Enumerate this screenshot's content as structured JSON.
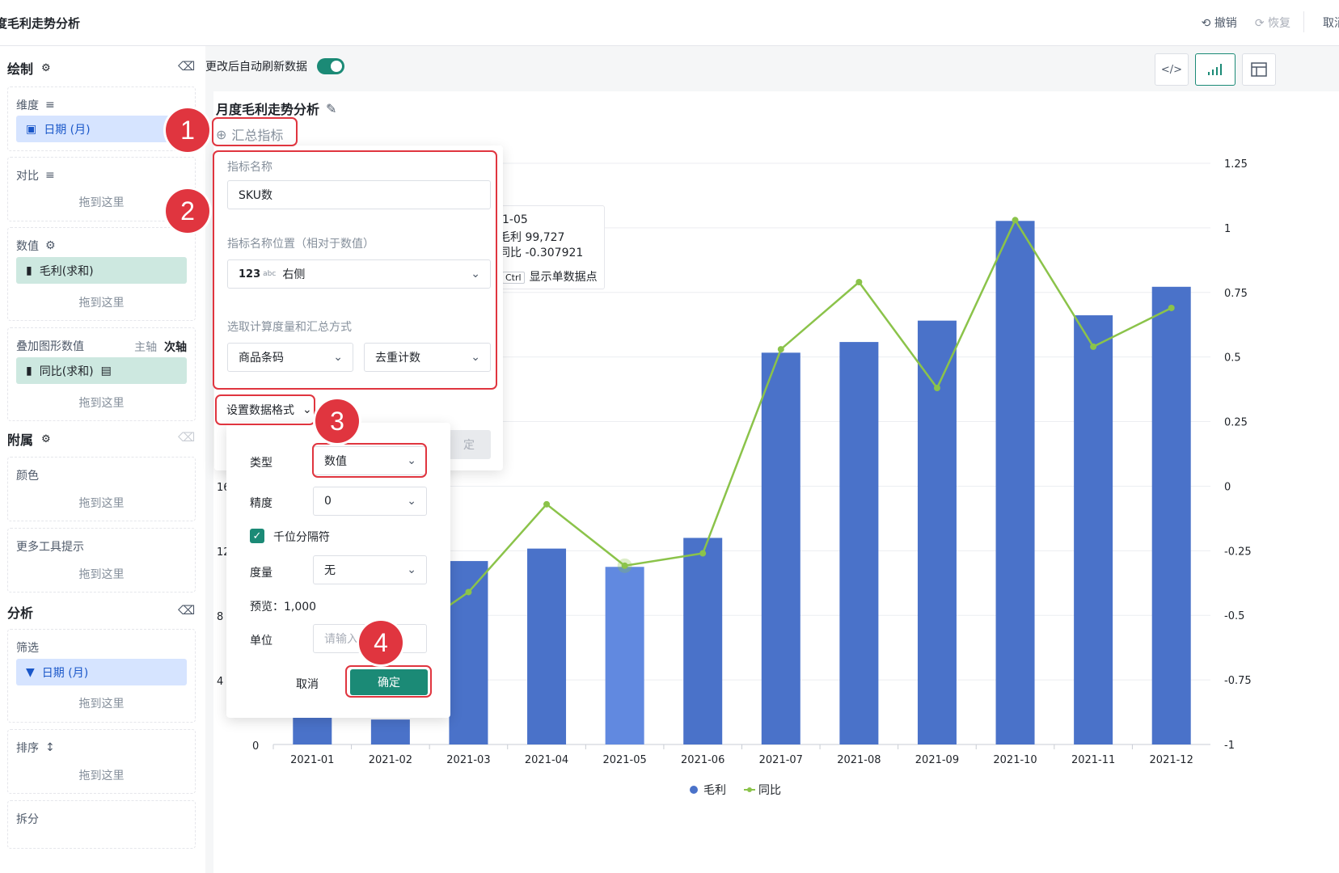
{
  "topbar": {
    "title": "度毛利走势分析",
    "undo": "撤销",
    "redo": "恢复",
    "cancel": "取消"
  },
  "left": {
    "draw": {
      "title": "绘制"
    },
    "dimension": {
      "label": "维度",
      "chip": "日期 (月)"
    },
    "compare": {
      "label": "对比",
      "drop": "拖到这里"
    },
    "value": {
      "label": "数值",
      "chip": "毛利(求和)",
      "drop": "拖到这里"
    },
    "overlay": {
      "label": "叠加图形数值",
      "main_axis": "主轴",
      "sub_axis": "次轴",
      "chip": "同比(求和)",
      "drop": "拖到这里"
    },
    "attach": {
      "title": "附属"
    },
    "color": {
      "label": "颜色",
      "drop": "拖到这里"
    },
    "tooltip_more": {
      "label": "更多工具提示",
      "drop": "拖到这里"
    },
    "analysis": {
      "title": "分析"
    },
    "filter": {
      "label": "筛选",
      "chip": "日期 (月)",
      "drop": "拖到这里"
    },
    "sort": {
      "label": "排序",
      "drop": "拖到这里"
    },
    "split": {
      "label": "拆分"
    }
  },
  "toolbar": {
    "auto_refresh": "更改后自动刷新数据",
    "code_icon": "</>"
  },
  "chart_header": {
    "title": "月度毛利走势分析",
    "agg_button": "汇总指标"
  },
  "popover": {
    "name_label": "指标名称",
    "name_value": "SKU数",
    "pos_label": "指标名称位置（相对于数值）",
    "pos_prefix": "123",
    "pos_prefix_small": "abc",
    "pos_value": "右侧",
    "calc_label": "选取计算度量和汇总方式",
    "measure": "商品条码",
    "agg": "去重计数",
    "hidden_btn": "定"
  },
  "format": {
    "button": "设置数据格式",
    "type_label": "类型",
    "type_value": "数值",
    "precision_label": "精度",
    "precision_value": "0",
    "thousands": "千位分隔符",
    "unit_scale_label": "度量",
    "unit_scale_value": "无",
    "preview": "预览：1,000",
    "unit_label": "单位",
    "unit_placeholder": "请输入",
    "cancel": "取消",
    "ok": "确定"
  },
  "tooltip": {
    "line1": "1-05",
    "line2": "毛利 99,727",
    "line3": "同比 -0.307921",
    "ctrl": "Ctrl",
    "hint": "显示单数据点"
  },
  "badges": [
    "1",
    "2",
    "3",
    "4"
  ],
  "colors": {
    "accent": "#1b8a76",
    "bar": "#4a72c9",
    "bar_hover": "#6189e0",
    "line": "#8bc34a",
    "annotation": "#e0353f"
  },
  "chart_data": {
    "type": "bar",
    "categories": [
      "2021-01",
      "2021-02",
      "2021-03",
      "2021-04",
      "2021-05",
      "2021-06",
      "2021-07",
      "2021-08",
      "2021-09",
      "2021-10",
      "2021-11",
      "2021-12"
    ],
    "series": [
      {
        "name": "毛利",
        "type": "bar",
        "axis": "left",
        "values": [
          26000,
          14000,
          103000,
          110000,
          99727,
          116000,
          220000,
          226000,
          238000,
          294000,
          241000,
          257000
        ]
      },
      {
        "name": "同比",
        "type": "line",
        "axis": "right",
        "values": [
          -0.72,
          -0.62,
          -0.41,
          -0.07,
          -0.307921,
          -0.26,
          0.53,
          0.79,
          0.38,
          1.03,
          0.54,
          0.69
        ]
      }
    ],
    "left_axis_ticks_visible": [
      "16",
      "12",
      "8",
      "4",
      "0"
    ],
    "right_axis": {
      "ylim": [
        -1,
        1.25
      ],
      "ticks": [
        "1.25",
        "1",
        "0.75",
        "0.5",
        "0.25",
        "0",
        "-0.25",
        "-0.5",
        "-0.75",
        "-1"
      ]
    },
    "legend": [
      "毛利",
      "同比"
    ],
    "legend_position": "bottom",
    "highlight_index": 4
  }
}
